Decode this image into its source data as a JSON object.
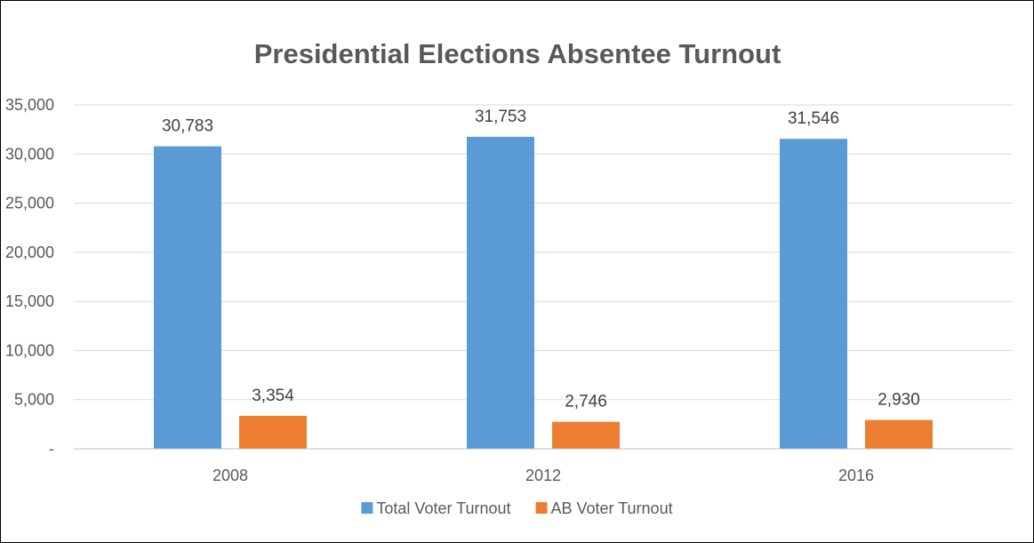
{
  "chart_data": {
    "type": "bar",
    "title": "Presidential Elections Absentee Turnout",
    "categories": [
      "2008",
      "2012",
      "2016"
    ],
    "series": [
      {
        "name": "Total Voter Turnout",
        "values": [
          30783,
          31753,
          31546
        ],
        "labels": [
          "30,783",
          "31,753",
          "31,546"
        ],
        "color": "#5B9BD5"
      },
      {
        "name": "AB Voter Turnout",
        "values": [
          3354,
          2746,
          2930
        ],
        "labels": [
          "3,354",
          "2,746",
          "2,930"
        ],
        "color": "#ED7D31"
      }
    ],
    "ylim": [
      0,
      35000
    ],
    "yticks": [
      0,
      5000,
      10000,
      15000,
      20000,
      25000,
      30000,
      35000
    ],
    "ytick_labels": [
      "-",
      "5,000",
      "10,000",
      "15,000",
      "20,000",
      "25,000",
      "30,000",
      "35,000"
    ],
    "grid": true,
    "legend_position": "bottom",
    "colors": {
      "title": "#595959",
      "text": "#595959",
      "gridline": "#D9D9D9",
      "axis": "#BFBFBF"
    }
  }
}
